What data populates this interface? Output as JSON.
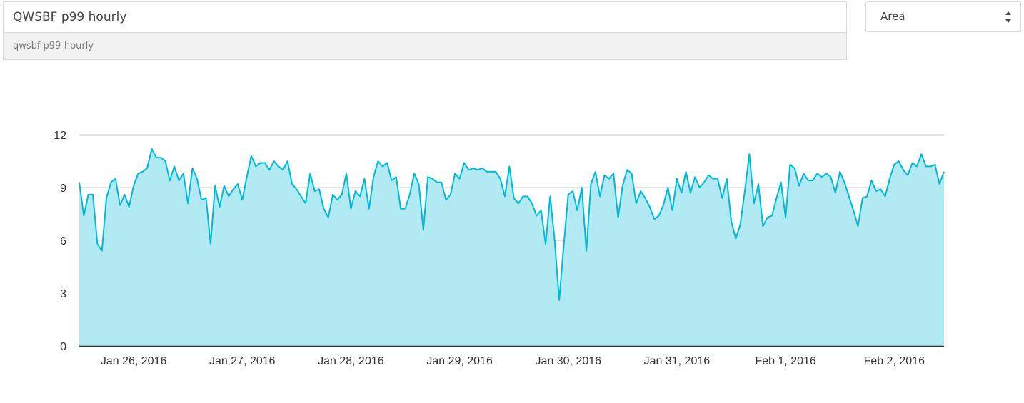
{
  "header": {
    "title_value": "QWSBF p99 hourly",
    "slug": "qwsbf-p99-hourly",
    "chart_type_select": {
      "selected": "Area"
    }
  },
  "colors": {
    "line": "#00b8d9",
    "fill": "#b1eaf3",
    "grid": "#cccccc",
    "axis": "#333333"
  },
  "icons": {
    "select_arrows": "updown-chevrons-icon"
  },
  "chart_data": {
    "type": "area",
    "title": "",
    "xlabel": "",
    "ylabel": "",
    "ylim": [
      0,
      12
    ],
    "yticks": [
      "0",
      "3",
      "6",
      "9",
      "12"
    ],
    "xlim": [
      "2016-01-25 12:00",
      "2016-02-02 12:00"
    ],
    "xticks": [
      "Jan 26, 2016",
      "Jan 27, 2016",
      "Jan 28, 2016",
      "Jan 29, 2016",
      "Jan 30, 2016",
      "Jan 31, 2016",
      "Feb 1, 2016",
      "Feb 2, 2016"
    ],
    "x_interval": "1 hour",
    "grid": true,
    "legend": "none",
    "series": [
      {
        "values": [
          9.3,
          7.4,
          8.6,
          8.6,
          5.8,
          5.4,
          8.4,
          9.3,
          9.5,
          8.0,
          8.6,
          7.9,
          9.1,
          9.8,
          9.9,
          10.1,
          11.2,
          10.7,
          10.7,
          10.5,
          9.4,
          10.2,
          9.4,
          9.8,
          8.1,
          10.1,
          9.5,
          8.3,
          8.4,
          5.8,
          9.1,
          7.9,
          9.1,
          8.5,
          8.9,
          9.2,
          8.3,
          9.6,
          10.8,
          10.2,
          10.4,
          10.4,
          10.0,
          10.5,
          10.2,
          10.0,
          10.5,
          9.2,
          8.9,
          8.5,
          8.1,
          9.8,
          8.8,
          8.9,
          7.8,
          7.3,
          8.6,
          8.3,
          8.6,
          9.8,
          7.8,
          8.8,
          8.5,
          9.5,
          7.8,
          9.6,
          10.5,
          10.2,
          10.4,
          9.4,
          9.6,
          7.8,
          7.8,
          8.6,
          9.8,
          9.2,
          6.6,
          9.6,
          9.5,
          9.3,
          9.3,
          8.3,
          8.6,
          9.8,
          9.5,
          10.4,
          10.0,
          10.1,
          10.0,
          10.1,
          9.9,
          9.9,
          9.9,
          9.5,
          8.5,
          10.2,
          8.4,
          8.1,
          8.5,
          8.5,
          8.1,
          7.4,
          7.7,
          5.8,
          8.5,
          6.0,
          2.6,
          5.7,
          8.6,
          8.8,
          7.7,
          9.0,
          5.4,
          9.2,
          9.9,
          8.5,
          9.7,
          9.5,
          9.8,
          7.3,
          9.1,
          10.0,
          9.8,
          8.1,
          8.8,
          8.4,
          7.9,
          7.2,
          7.4,
          8.0,
          9.0,
          7.7,
          9.5,
          8.7,
          9.9,
          8.7,
          9.6,
          9.0,
          9.3,
          9.7,
          9.5,
          9.5,
          8.4,
          9.5,
          7.1,
          6.1,
          6.9,
          8.8,
          10.9,
          8.1,
          9.2,
          6.8,
          7.3,
          7.4,
          8.4,
          9.3,
          7.3,
          10.3,
          10.1,
          9.1,
          9.8,
          9.4,
          9.4,
          9.8,
          9.6,
          9.8,
          9.6,
          8.7,
          9.9,
          9.3,
          8.5,
          7.7,
          6.8,
          8.4,
          8.5,
          9.4,
          8.8,
          8.9,
          8.5,
          9.5,
          10.3,
          10.5,
          10.0,
          9.7,
          10.4,
          10.2,
          10.9,
          10.2,
          10.2,
          10.3,
          9.2,
          9.9
        ]
      }
    ]
  }
}
